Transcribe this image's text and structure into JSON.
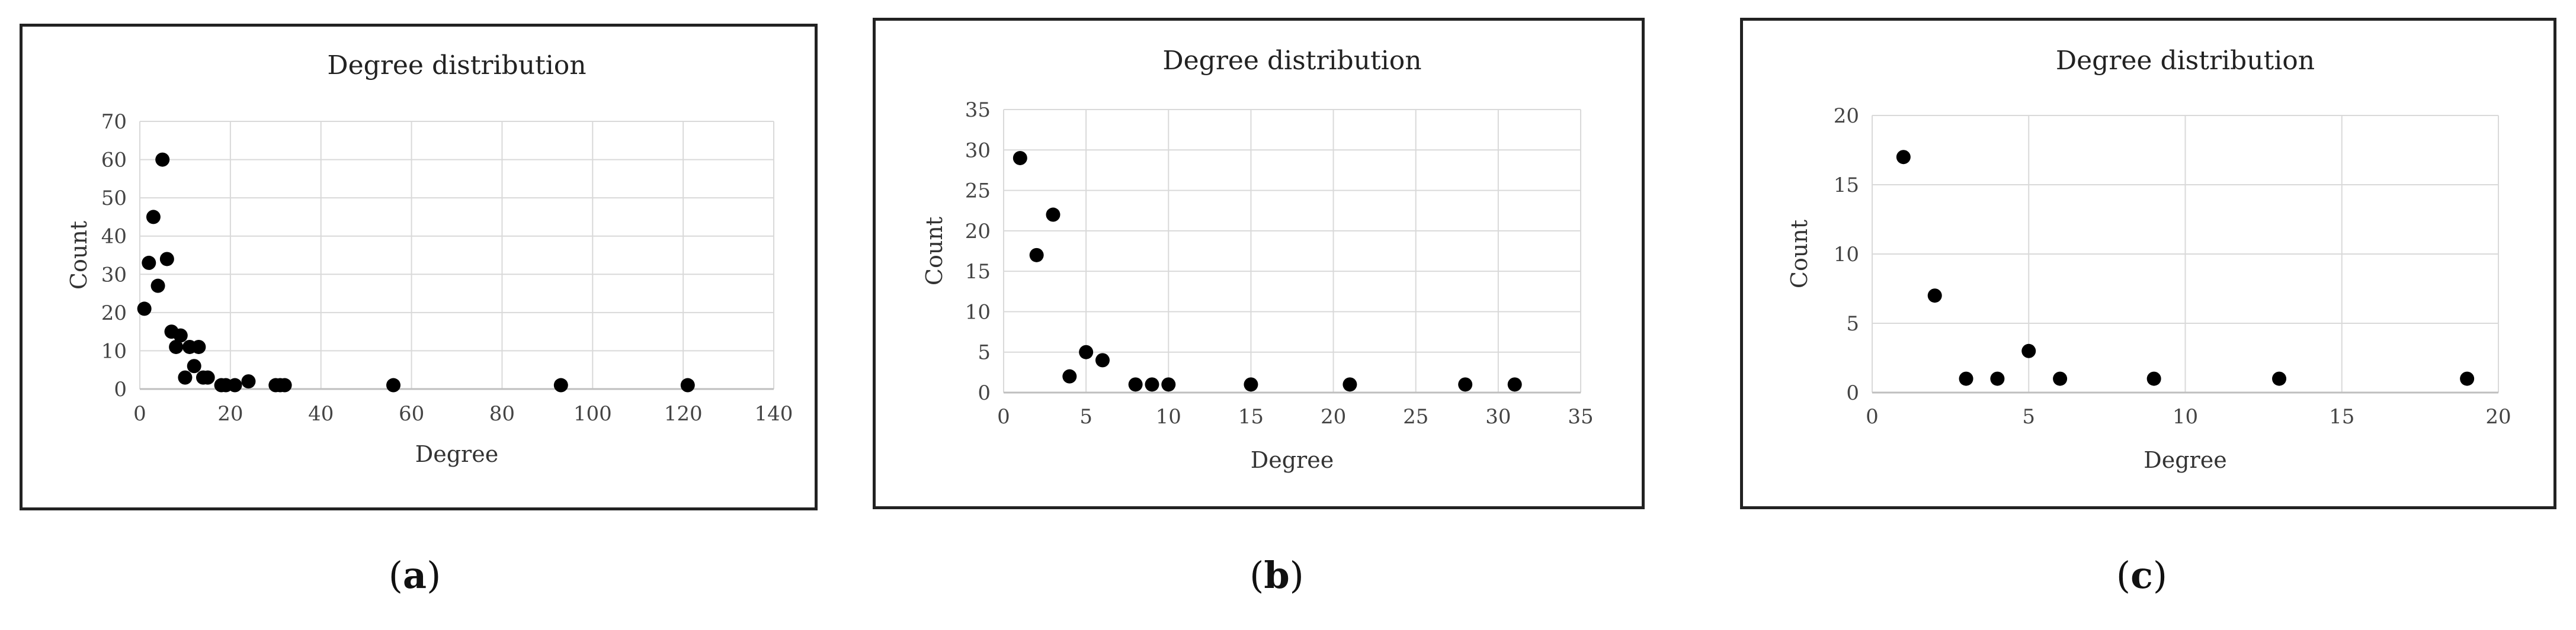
{
  "chart_data": [
    {
      "type": "scatter",
      "title": "Degree distribution",
      "xlabel": "Degree",
      "ylabel": "Count",
      "xlim": [
        0,
        140
      ],
      "ylim": [
        0,
        70
      ],
      "xticks": [
        0,
        20,
        40,
        60,
        80,
        100,
        120,
        140
      ],
      "yticks": [
        0,
        10,
        20,
        30,
        40,
        50,
        60,
        70
      ],
      "grid": true,
      "legend": "none",
      "color": "#000000",
      "caption_letter": "a",
      "x": [
        1,
        2,
        3,
        4,
        5,
        6,
        7,
        8,
        9,
        10,
        11,
        12,
        13,
        14,
        15,
        18,
        19,
        21,
        24,
        30,
        31,
        32,
        56,
        93,
        121
      ],
      "y": [
        21,
        33,
        45,
        27,
        60,
        34,
        15,
        11,
        14,
        3,
        11,
        6,
        11,
        3,
        3,
        1,
        1,
        1,
        2,
        1,
        1,
        1,
        1,
        1,
        1
      ]
    },
    {
      "type": "scatter",
      "title": "Degree distribution",
      "xlabel": "Degree",
      "ylabel": "Count",
      "xlim": [
        0,
        35
      ],
      "ylim": [
        0,
        35
      ],
      "xticks": [
        0,
        5,
        10,
        15,
        20,
        25,
        30,
        35
      ],
      "yticks": [
        0,
        5,
        10,
        15,
        20,
        25,
        30,
        35
      ],
      "grid": true,
      "legend": "none",
      "color": "#000000",
      "caption_letter": "b",
      "x": [
        1,
        2,
        3,
        4,
        5,
        6,
        8,
        9,
        10,
        15,
        21,
        28,
        31
      ],
      "y": [
        29,
        17,
        22,
        2,
        5,
        4,
        1,
        1,
        1,
        1,
        1,
        1,
        1
      ]
    },
    {
      "type": "scatter",
      "title": "Degree distribution",
      "xlabel": "Degree",
      "ylabel": "Count",
      "xlim": [
        0,
        20
      ],
      "ylim": [
        0,
        20
      ],
      "xticks": [
        0,
        5,
        10,
        15,
        20
      ],
      "yticks": [
        0,
        5,
        10,
        15,
        20
      ],
      "grid": true,
      "legend": "none",
      "color": "#000000",
      "caption_letter": "c",
      "x": [
        1,
        2,
        3,
        4,
        5,
        6,
        9,
        13,
        19
      ],
      "y": [
        17,
        7,
        1,
        1,
        3,
        1,
        1,
        1,
        1
      ]
    }
  ]
}
